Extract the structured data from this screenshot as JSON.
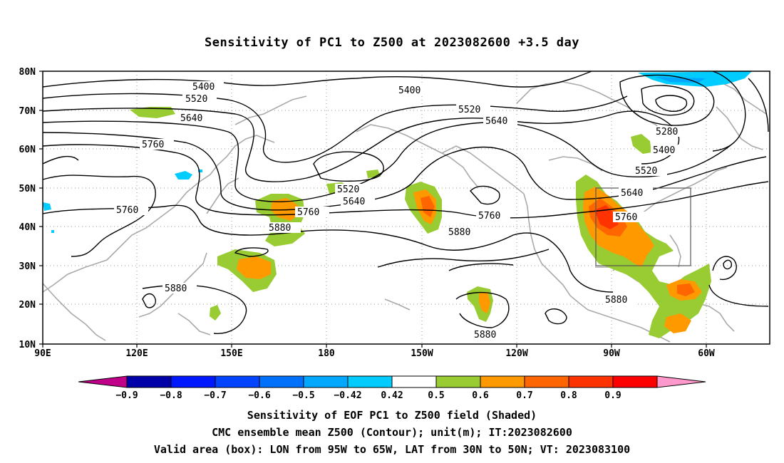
{
  "title": "Sensitivity of PC1 to Z500 at 2023082600 +3.5 day",
  "lat_labels": [
    "80N",
    "70N",
    "60N",
    "50N",
    "40N",
    "30N",
    "20N",
    "10N"
  ],
  "lon_labels": [
    "90E",
    "120E",
    "150E",
    "180",
    "150W",
    "120W",
    "90W",
    "60W"
  ],
  "contour_labels": [
    {
      "text": "5400"
    },
    {
      "text": "5520"
    },
    {
      "text": "5640"
    },
    {
      "text": "5760"
    },
    {
      "text": "5760"
    },
    {
      "text": "5400"
    },
    {
      "text": "5520"
    },
    {
      "text": "5640"
    },
    {
      "text": "5280"
    },
    {
      "text": "5400"
    },
    {
      "text": "5520"
    },
    {
      "text": "5640"
    },
    {
      "text": "5760"
    },
    {
      "text": "5520"
    },
    {
      "text": "5640"
    },
    {
      "text": "5760"
    },
    {
      "text": "5760"
    },
    {
      "text": "5880"
    },
    {
      "text": "5880"
    },
    {
      "text": "5880"
    },
    {
      "text": "5880"
    },
    {
      "text": "5880"
    }
  ],
  "colorbar": {
    "colors": [
      "#c00088",
      "#0000a8",
      "#0018ff",
      "#0044ff",
      "#0070ff",
      "#00a8ff",
      "#00ccff",
      "#ffffff",
      "#99cc33",
      "#ff9900",
      "#ff6600",
      "#ff3300",
      "#ff0000",
      "#ff99cc"
    ],
    "tick_labels": [
      "-0.9",
      "-0.8",
      "-0.7",
      "-0.6",
      "-0.5",
      "-0.42",
      "0.42",
      "0.5",
      "0.6",
      "0.7",
      "0.8",
      "0.9"
    ]
  },
  "footer": {
    "line1": "Sensitivity of EOF PC1 to Z500 field (Shaded)",
    "line2": "CMC ensemble mean Z500 (Contour); unit(m); IT:2023082600",
    "line3": "Valid area (box): LON from 95W to 65W, LAT from 30N to 50N; VT: 2023083100"
  },
  "valid_area": {
    "lon_min": -95,
    "lon_max": -65,
    "lat_min": 30,
    "lat_max": 50
  }
}
